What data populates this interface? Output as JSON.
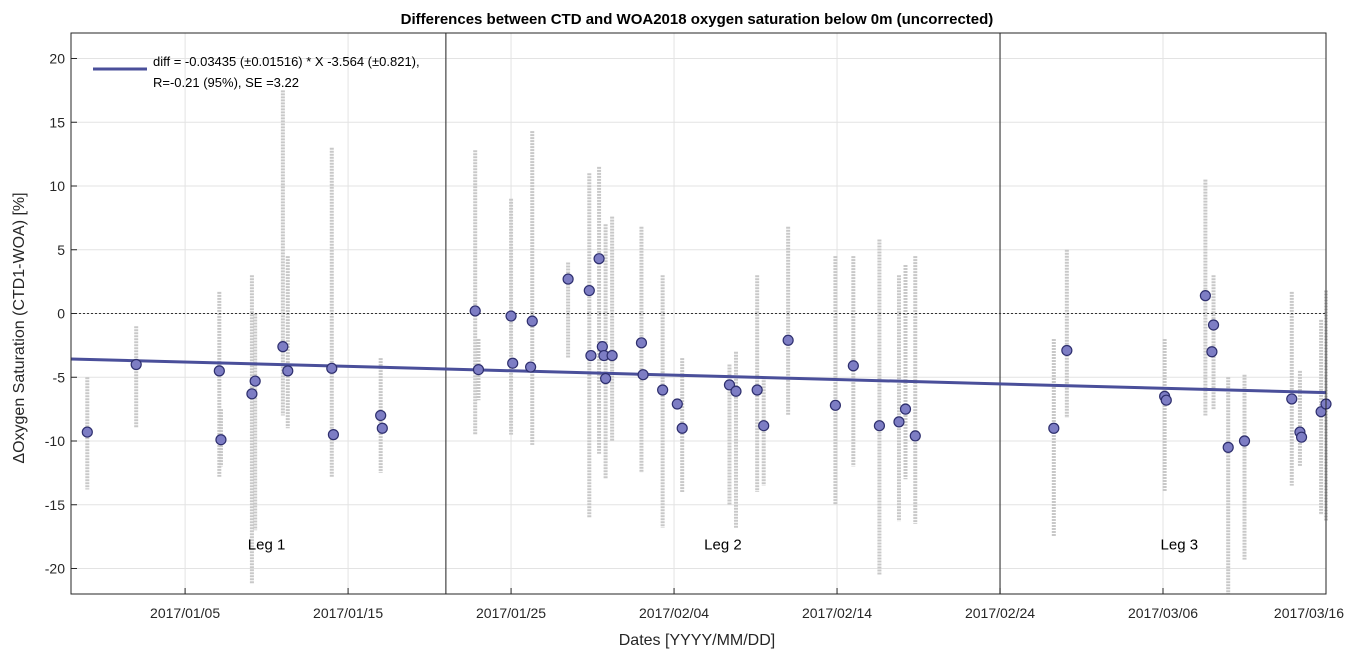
{
  "chart_data": {
    "type": "scatter",
    "title": "Differences between CTD and WOA2018 oxygen saturation below 0m (uncorrected)",
    "xlabel": "Dates [YYYY/MM/DD]",
    "ylabel": "ΔOxygen Saturation (CTD1-WOA) [%]",
    "x_type": "date",
    "xlim": [
      "2016/12/29",
      "2017/03/16"
    ],
    "ylim": [
      -22,
      22
    ],
    "x_ticks": [
      "2017/01/05",
      "2017/01/15",
      "2017/01/25",
      "2017/02/04",
      "2017/02/14",
      "2017/02/24",
      "2017/03/06",
      "2017/03/16"
    ],
    "y_ticks": [
      -20,
      -15,
      -10,
      -5,
      0,
      5,
      10,
      15,
      20
    ],
    "grid": true,
    "zero_line": 0,
    "legend": {
      "placement": "top-left",
      "line1": "diff = -0.03435 (±0.01516) * X  -3.564 (±0.821),",
      "line2": "R=-0.21 (95%), SE =3.22"
    },
    "regression": {
      "slope": -0.03435,
      "intercept": -3.564,
      "x0": "2016/12/29",
      "color": "#4a4f9a"
    },
    "leg_separators": [
      "2017/01/21",
      "2017/02/24"
    ],
    "leg_labels": [
      {
        "text": "Leg 1",
        "x": "2017/01/10",
        "y": -18.5
      },
      {
        "text": "Leg 2",
        "x": "2017/02/07",
        "y": -18.5
      },
      {
        "text": "Leg 3",
        "x": "2017/03/07",
        "y": -18.5
      }
    ],
    "profile_ranges": [
      {
        "x": "2016/12/30",
        "min": -13.8,
        "max": -5.0
      },
      {
        "x": "2017/01/02",
        "min": -9.0,
        "max": -1.0
      },
      {
        "x": "2017/01/07.1",
        "min": -12.8,
        "max": 1.7
      },
      {
        "x": "2017/01/07.2",
        "min": -12.0,
        "max": -7.5
      },
      {
        "x": "2017/01/09.1",
        "min": -21.2,
        "max": 3.0
      },
      {
        "x": "2017/01/09.3",
        "min": -17.0,
        "max": 0.0
      },
      {
        "x": "2017/01/11",
        "min": -8.0,
        "max": 17.5
      },
      {
        "x": "2017/01/11.3",
        "min": -9.0,
        "max": 4.5
      },
      {
        "x": "2017/01/14",
        "min": -12.8,
        "max": 13.0
      },
      {
        "x": "2017/01/17",
        "min": -12.5,
        "max": -3.5
      },
      {
        "x": "2017/01/22.8",
        "min": -9.5,
        "max": 12.8
      },
      {
        "x": "2017/01/23",
        "min": -6.8,
        "max": -2.0
      },
      {
        "x": "2017/01/25",
        "min": -9.5,
        "max": 9.0
      },
      {
        "x": "2017/01/26.3",
        "min": -10.3,
        "max": 14.3
      },
      {
        "x": "2017/01/28.5",
        "min": -3.5,
        "max": 4.0
      },
      {
        "x": "2017/01/29.8",
        "min": -16.0,
        "max": 11.0
      },
      {
        "x": "2017/01/30.4",
        "min": -11.0,
        "max": 11.5
      },
      {
        "x": "2017/01/30.8",
        "min": -13.0,
        "max": 7.0
      },
      {
        "x": "2017/01/31.2",
        "min": -10.0,
        "max": 7.6
      },
      {
        "x": "2017/02/02.0",
        "min": -12.5,
        "max": 6.8
      },
      {
        "x": "2017/02/03.3",
        "min": -16.8,
        "max": 3.0
      },
      {
        "x": "2017/02/04.5",
        "min": -14.0,
        "max": -3.5
      },
      {
        "x": "2017/02/07.4",
        "min": -15.0,
        "max": -4.0
      },
      {
        "x": "2017/02/07.8",
        "min": -16.8,
        "max": -3.0
      },
      {
        "x": "2017/02/09.1",
        "min": -14.0,
        "max": 3.0
      },
      {
        "x": "2017/02/09.5",
        "min": -13.5,
        "max": -5.0
      },
      {
        "x": "2017/02/11.0",
        "min": -8.0,
        "max": 6.8
      },
      {
        "x": "2017/02/13.9",
        "min": -15.0,
        "max": 4.5
      },
      {
        "x": "2017/02/15.0",
        "min": -12.0,
        "max": 4.5
      },
      {
        "x": "2017/02/16.6",
        "min": -20.5,
        "max": 5.8
      },
      {
        "x": "2017/02/17.8",
        "min": -16.3,
        "max": 3.0
      },
      {
        "x": "2017/02/18.2",
        "min": -13.0,
        "max": 3.8
      },
      {
        "x": "2017/02/18.8",
        "min": -16.5,
        "max": 4.5
      },
      {
        "x": "2017/02/27.3",
        "min": -17.5,
        "max": -2.0
      },
      {
        "x": "2017/02/28.1",
        "min": -8.2,
        "max": 5.0
      },
      {
        "x": "2017/03/06.1",
        "min": -14.0,
        "max": -2.0
      },
      {
        "x": "2017/03/08.6",
        "min": -8.0,
        "max": 10.5
      },
      {
        "x": "2017/03/09.1",
        "min": -7.5,
        "max": 3.0
      },
      {
        "x": "2017/03/10.0",
        "min": -22.0,
        "max": -5.0
      },
      {
        "x": "2017/03/11.0",
        "min": -19.3,
        "max": -4.8
      },
      {
        "x": "2017/03/13.9",
        "min": -13.5,
        "max": 1.7
      },
      {
        "x": "2017/03/14.4",
        "min": -12.0,
        "max": -4.5
      },
      {
        "x": "2017/03/15.7",
        "min": -15.8,
        "max": -0.5
      },
      {
        "x": "2017/03/16.0",
        "min": -16.3,
        "max": 1.8
      }
    ],
    "points": [
      {
        "x": "2016/12/30",
        "y": -9.3
      },
      {
        "x": "2017/01/02",
        "y": -4.0
      },
      {
        "x": "2017/01/07.1",
        "y": -4.5
      },
      {
        "x": "2017/01/07.2",
        "y": -9.9
      },
      {
        "x": "2017/01/09.1",
        "y": -6.3
      },
      {
        "x": "2017/01/09.3",
        "y": -5.3
      },
      {
        "x": "2017/01/11",
        "y": -2.6
      },
      {
        "x": "2017/01/11.3",
        "y": -4.5
      },
      {
        "x": "2017/01/14",
        "y": -4.3
      },
      {
        "x": "2017/01/14.1",
        "y": -9.5
      },
      {
        "x": "2017/01/17",
        "y": -8.0
      },
      {
        "x": "2017/01/17.1",
        "y": -9.0
      },
      {
        "x": "2017/01/22.8",
        "y": 0.2
      },
      {
        "x": "2017/01/23",
        "y": -4.4
      },
      {
        "x": "2017/01/25",
        "y": -0.2
      },
      {
        "x": "2017/01/25.1",
        "y": -3.9
      },
      {
        "x": "2017/01/26.3",
        "y": -0.6
      },
      {
        "x": "2017/01/26.2",
        "y": -4.2
      },
      {
        "x": "2017/01/28.5",
        "y": 2.7
      },
      {
        "x": "2017/01/29.8",
        "y": 1.8
      },
      {
        "x": "2017/01/29.9",
        "y": -3.3
      },
      {
        "x": "2017/01/30.4",
        "y": 4.3
      },
      {
        "x": "2017/01/30.6",
        "y": -2.6
      },
      {
        "x": "2017/01/30.7",
        "y": -3.3
      },
      {
        "x": "2017/01/30.8",
        "y": -5.1
      },
      {
        "x": "2017/01/31.2",
        "y": -3.3
      },
      {
        "x": "2017/02/02.0",
        "y": -2.3
      },
      {
        "x": "2017/02/02.1",
        "y": -4.8
      },
      {
        "x": "2017/02/03.3",
        "y": -6.0
      },
      {
        "x": "2017/02/04.2",
        "y": -7.1
      },
      {
        "x": "2017/02/04.5",
        "y": -9.0
      },
      {
        "x": "2017/02/07.4",
        "y": -5.6
      },
      {
        "x": "2017/02/07.8",
        "y": -6.1
      },
      {
        "x": "2017/02/09.1",
        "y": -6.0
      },
      {
        "x": "2017/02/09.5",
        "y": -8.8
      },
      {
        "x": "2017/02/11.0",
        "y": -2.1
      },
      {
        "x": "2017/02/13.9",
        "y": -7.2
      },
      {
        "x": "2017/02/15.0",
        "y": -4.1
      },
      {
        "x": "2017/02/16.6",
        "y": -8.8
      },
      {
        "x": "2017/02/17.8",
        "y": -8.5
      },
      {
        "x": "2017/02/18.2",
        "y": -7.5
      },
      {
        "x": "2017/02/18.8",
        "y": -9.6
      },
      {
        "x": "2017/02/27.3",
        "y": -9.0
      },
      {
        "x": "2017/02/28.1",
        "y": -2.9
      },
      {
        "x": "2017/03/06.1",
        "y": -6.5
      },
      {
        "x": "2017/03/06.2",
        "y": -6.8
      },
      {
        "x": "2017/03/08.6",
        "y": 1.4
      },
      {
        "x": "2017/03/09.0",
        "y": -3.0
      },
      {
        "x": "2017/03/09.1",
        "y": -0.9
      },
      {
        "x": "2017/03/10.0",
        "y": -10.5
      },
      {
        "x": "2017/03/11.0",
        "y": -10.0
      },
      {
        "x": "2017/03/13.9",
        "y": -6.7
      },
      {
        "x": "2017/03/14.4",
        "y": -9.3
      },
      {
        "x": "2017/03/14.5",
        "y": -9.7
      },
      {
        "x": "2017/03/15.7",
        "y": -7.7
      },
      {
        "x": "2017/03/16.0",
        "y": -7.1
      }
    ],
    "colors": {
      "points_fill": "#7d7dc4",
      "points_edge": "#2e2f6e",
      "profiles": "#c8c8c8",
      "grid": "#e3e3e3",
      "separator": "#444444"
    }
  }
}
